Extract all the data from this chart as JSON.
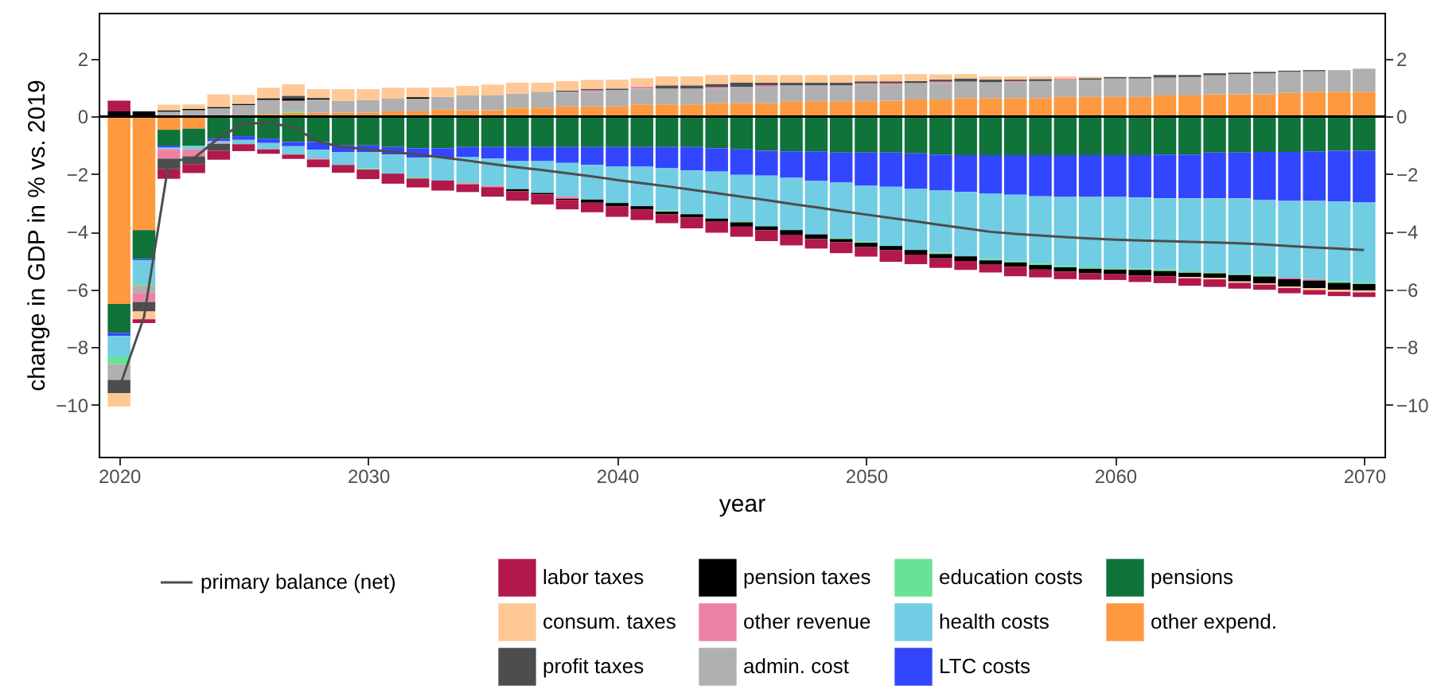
{
  "chart_data": {
    "type": "bar",
    "stacked": true,
    "xlabel": "year",
    "ylabel": "change in GDP in % vs. 2019",
    "legend": "bottom",
    "x": [
      2020,
      2021,
      2022,
      2023,
      2024,
      2025,
      2026,
      2027,
      2028,
      2029,
      2030,
      2031,
      2032,
      2033,
      2034,
      2035,
      2036,
      2037,
      2038,
      2039,
      2040,
      2041,
      2042,
      2043,
      2044,
      2045,
      2046,
      2047,
      2048,
      2049,
      2050,
      2051,
      2052,
      2053,
      2054,
      2055,
      2056,
      2057,
      2058,
      2059,
      2060,
      2061,
      2062,
      2063,
      2064,
      2065,
      2066,
      2067,
      2068,
      2069,
      2070
    ],
    "xlim": [
      2019.5,
      2070.5
    ],
    "xticks": [
      2020,
      2030,
      2040,
      2050,
      2060,
      2070
    ],
    "ylim": [
      -11.8,
      3.6
    ],
    "yticks": [
      -10,
      -8,
      -6,
      -4,
      -2,
      0,
      2
    ],
    "y2lim": [
      -11.8,
      3.6
    ],
    "y2ticks": [
      -10,
      -8,
      -6,
      -4,
      -2,
      0,
      2
    ],
    "ref_lines": [
      {
        "axis": "y",
        "value": 0,
        "color": "#000000"
      }
    ],
    "series": [
      {
        "name": "other expend.",
        "color": "#ff993f",
        "values": [
          -6.5,
          -3.94,
          -0.46,
          -0.42,
          0,
          0,
          0.09,
          0.13,
          0.13,
          0.13,
          0.13,
          0.18,
          0.18,
          0.24,
          0.22,
          0.22,
          0.31,
          0.31,
          0.35,
          0.35,
          0.35,
          0.42,
          0.42,
          0.42,
          0.46,
          0.46,
          0.46,
          0.53,
          0.53,
          0.53,
          0.53,
          0.55,
          0.59,
          0.59,
          0.64,
          0.64,
          0.64,
          0.64,
          0.68,
          0.68,
          0.68,
          0.68,
          0.73,
          0.73,
          0.77,
          0.77,
          0.77,
          0.82,
          0.86,
          0.86,
          0.86
        ]
      },
      {
        "name": "pensions",
        "color": "#0f733a",
        "values": [
          -1.0,
          -1.0,
          -0.55,
          -0.59,
          -0.77,
          -0.68,
          -0.77,
          -0.88,
          -0.88,
          -1.0,
          -1.0,
          -1.06,
          -1.1,
          -1.1,
          -1.06,
          -1.06,
          -1.06,
          -1.06,
          -1.06,
          -1.06,
          -1.06,
          -1.06,
          -1.06,
          -1.06,
          -1.1,
          -1.14,
          -1.19,
          -1.21,
          -1.21,
          -1.25,
          -1.25,
          -1.25,
          -1.28,
          -1.32,
          -1.34,
          -1.34,
          -1.34,
          -1.34,
          -1.34,
          -1.34,
          -1.34,
          -1.34,
          -1.32,
          -1.32,
          -1.25,
          -1.25,
          -1.23,
          -1.23,
          -1.21,
          -1.19,
          -1.19
        ]
      },
      {
        "name": "LTC costs",
        "color": "#3346ff",
        "values": [
          -0.11,
          -0.05,
          -0.07,
          0,
          -0.09,
          -0.13,
          -0.15,
          -0.15,
          -0.27,
          -0.24,
          -0.24,
          -0.26,
          -0.33,
          -0.33,
          -0.35,
          -0.4,
          -0.49,
          -0.49,
          -0.55,
          -0.62,
          -0.68,
          -0.68,
          -0.73,
          -0.81,
          -0.81,
          -0.88,
          -0.86,
          -0.92,
          -1.03,
          -1.04,
          -1.15,
          -1.19,
          -1.23,
          -1.25,
          -1.28,
          -1.34,
          -1.37,
          -1.43,
          -1.45,
          -1.45,
          -1.45,
          -1.47,
          -1.52,
          -1.52,
          -1.59,
          -1.59,
          -1.67,
          -1.7,
          -1.72,
          -1.76,
          -1.79
        ]
      },
      {
        "name": "health costs",
        "color": "#70cde3",
        "values": [
          -0.71,
          -0.82,
          -0.05,
          -0.13,
          -0.05,
          -0.15,
          -0.22,
          -0.29,
          -0.31,
          -0.44,
          -0.55,
          -0.66,
          -0.68,
          -0.79,
          -0.9,
          -0.95,
          -0.97,
          -1.1,
          -1.17,
          -1.2,
          -1.26,
          -1.37,
          -1.47,
          -1.52,
          -1.63,
          -1.61,
          -1.76,
          -1.81,
          -1.85,
          -1.92,
          -1.94,
          -2.05,
          -2.12,
          -2.16,
          -2.23,
          -2.27,
          -2.31,
          -2.33,
          -2.4,
          -2.44,
          -2.47,
          -2.47,
          -2.47,
          -2.53,
          -2.56,
          -2.62,
          -2.6,
          -2.66,
          -2.71,
          -2.77,
          -2.78
        ]
      },
      {
        "name": "education costs",
        "color": "#66e394",
        "values": [
          -0.27,
          -0.05,
          0.04,
          null,
          null,
          null,
          0,
          0.05,
          0,
          0,
          -0.05,
          0,
          -0.04,
          0,
          0,
          0,
          0,
          0,
          0,
          0,
          0,
          0,
          -0.04,
          0,
          0,
          -0.04,
          0,
          0,
          0,
          -0.04,
          -0.04,
          0,
          0,
          -0.04,
          0,
          -0.04,
          -0.04,
          -0.05,
          -0.04,
          -0.05,
          -0.05,
          -0.04,
          -0.05,
          -0.05,
          -0.04,
          -0.04,
          -0.05,
          0,
          0,
          -0.05,
          -0.05
        ]
      },
      {
        "name": "admin. cost",
        "color": "#b0b0b0",
        "values": [
          -0.55,
          -0.26,
          0.13,
          0.22,
          0.29,
          0.4,
          0.49,
          0.37,
          0.46,
          0.42,
          0.44,
          0.44,
          0.44,
          0.44,
          0.51,
          0.51,
          0.48,
          0.55,
          0.51,
          0.51,
          0.57,
          0.55,
          0.55,
          0.55,
          0.51,
          0.57,
          0.57,
          0.55,
          0.55,
          0.55,
          0.57,
          0.55,
          0.57,
          0.57,
          0.57,
          0.55,
          0.55,
          0.59,
          0.6,
          0.6,
          0.64,
          0.64,
          0.62,
          0.64,
          0.66,
          0.7,
          0.73,
          0.73,
          0.71,
          0.75,
          0.8
        ]
      },
      {
        "name": "other revenue",
        "color": "#ee82a5",
        "values": [
          0,
          -0.31,
          -0.33,
          -0.24,
          -0.04,
          0,
          0,
          0,
          -0.03,
          0,
          0,
          0,
          0,
          0,
          -0.04,
          -0.04,
          0,
          0,
          -0.07,
          0.05,
          0,
          0.07,
          0,
          0,
          0.05,
          0,
          0.05,
          0,
          0,
          0,
          0.05,
          0.05,
          0,
          0.05,
          0,
          0,
          0.04,
          0,
          0.04,
          0,
          0,
          0,
          0,
          0,
          0,
          0,
          0,
          -0.05,
          -0.05,
          0,
          0
        ]
      },
      {
        "name": "pension taxes",
        "color": "#000000",
        "values": [
          0.18,
          0.18,
          0.04,
          0.04,
          0.04,
          0.04,
          0.05,
          0.07,
          0.05,
          0,
          0,
          0,
          0.05,
          0,
          0,
          0,
          -0.07,
          -0.05,
          -0.04,
          -0.11,
          -0.11,
          -0.11,
          -0.09,
          -0.11,
          -0.11,
          -0.15,
          -0.13,
          -0.16,
          -0.16,
          -0.11,
          -0.15,
          -0.15,
          -0.16,
          -0.15,
          -0.16,
          -0.15,
          -0.15,
          -0.16,
          -0.15,
          -0.16,
          -0.16,
          -0.2,
          -0.18,
          -0.15,
          -0.16,
          -0.22,
          -0.24,
          -0.26,
          -0.26,
          -0.24,
          -0.22
        ]
      },
      {
        "name": "profit taxes",
        "color": "#4d4d4d",
        "values": [
          -0.46,
          -0.33,
          -0.37,
          -0.27,
          -0.24,
          0,
          0,
          0.1,
          0,
          0,
          0,
          0,
          0,
          0,
          0,
          0,
          0,
          0,
          0.04,
          0.05,
          0.05,
          0,
          0.11,
          0.11,
          0.11,
          0.15,
          0.09,
          0.09,
          0.09,
          0.09,
          0.07,
          0.07,
          0.07,
          0.07,
          0.11,
          0.09,
          0.05,
          0.07,
          0,
          0.05,
          0.05,
          0.05,
          0.09,
          0.07,
          0.07,
          0.05,
          0.05,
          0.04,
          0.04,
          0,
          0
        ]
      },
      {
        "name": "consum. taxes",
        "color": "#ffc896",
        "values": [
          -0.46,
          -0.27,
          0.2,
          0.16,
          0.44,
          0.31,
          0.37,
          0.4,
          0.31,
          0.4,
          0.38,
          0.38,
          0.33,
          0.33,
          0.33,
          0.38,
          0.38,
          0.31,
          0.33,
          0.31,
          0.31,
          0.29,
          0.31,
          0.31,
          0.31,
          0.27,
          0.27,
          0.27,
          0.27,
          0.27,
          0.22,
          0.24,
          0.24,
          0.18,
          0.15,
          0.11,
          0.11,
          0.09,
          0.07,
          0.05,
          0,
          0,
          0,
          -0.04,
          -0.05,
          -0.05,
          -0.04,
          -0.05,
          -0.07,
          -0.07,
          -0.07
        ]
      },
      {
        "name": "labor taxes",
        "color": "#b2184c",
        "values": [
          0.37,
          -0.13,
          -0.33,
          -0.31,
          -0.31,
          -0.24,
          -0.15,
          -0.15,
          -0.27,
          -0.27,
          -0.33,
          -0.35,
          -0.31,
          -0.35,
          -0.27,
          -0.33,
          -0.33,
          -0.35,
          -0.33,
          -0.33,
          -0.37,
          -0.37,
          -0.31,
          -0.38,
          -0.38,
          -0.35,
          -0.38,
          -0.37,
          -0.33,
          -0.38,
          -0.33,
          -0.4,
          -0.33,
          -0.33,
          -0.31,
          -0.27,
          -0.33,
          -0.27,
          -0.26,
          -0.22,
          -0.2,
          -0.22,
          -0.24,
          -0.26,
          -0.26,
          -0.2,
          -0.18,
          -0.18,
          -0.16,
          -0.15,
          -0.16
        ]
      },
      {
        "name": "primary balance (net)",
        "type": "line",
        "color": "#4d4d4d",
        "values": [
          -9.43,
          -6.96,
          -1.56,
          -1.45,
          -0.75,
          -0.24,
          -0.22,
          -0.37,
          -0.88,
          -1.06,
          -1.14,
          -1.23,
          -1.32,
          -1.42,
          -1.53,
          -1.65,
          -1.76,
          -1.86,
          -1.97,
          -2.08,
          -2.2,
          -2.31,
          -2.42,
          -2.54,
          -2.66,
          -2.78,
          -2.9,
          -3.03,
          -3.15,
          -3.28,
          -3.4,
          -3.52,
          -3.64,
          -3.76,
          -3.88,
          -4.0,
          -4.07,
          -4.13,
          -4.18,
          -4.23,
          -4.27,
          -4.3,
          -4.32,
          -4.35,
          -4.37,
          -4.4,
          -4.44,
          -4.49,
          -4.54,
          -4.58,
          -4.63
        ]
      }
    ]
  }
}
